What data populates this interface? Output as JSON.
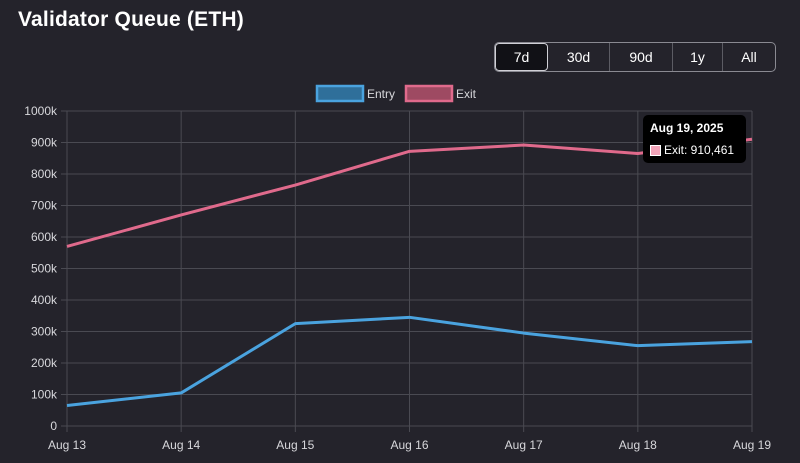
{
  "header": {
    "title": "Validator Queue (ETH)"
  },
  "range_selector": {
    "options": [
      "7d",
      "30d",
      "90d",
      "1y",
      "All"
    ],
    "selected": "7d"
  },
  "colors": {
    "entry": "#4aa3df",
    "exit": "#e06a8c",
    "background": "#24232b"
  },
  "tooltip": {
    "title": "Aug 19, 2025",
    "label": "Exit: 910,461"
  },
  "chart_data": {
    "type": "line",
    "categories": [
      "Aug 13",
      "Aug 14",
      "Aug 15",
      "Aug 16",
      "Aug 17",
      "Aug 18",
      "Aug 19"
    ],
    "series": [
      {
        "name": "Entry",
        "color": "#4aa3df",
        "values": [
          65000,
          105000,
          325000,
          345000,
          295000,
          255000,
          268000
        ]
      },
      {
        "name": "Exit",
        "color": "#e06a8c",
        "values": [
          570000,
          670000,
          765000,
          872000,
          892000,
          865000,
          910461
        ]
      }
    ],
    "y_ticks": [
      "0",
      "100k",
      "200k",
      "300k",
      "400k",
      "500k",
      "600k",
      "700k",
      "800k",
      "900k",
      "1000k"
    ],
    "ylim": [
      0,
      1000000
    ],
    "grid": true,
    "legend": "top-center"
  }
}
